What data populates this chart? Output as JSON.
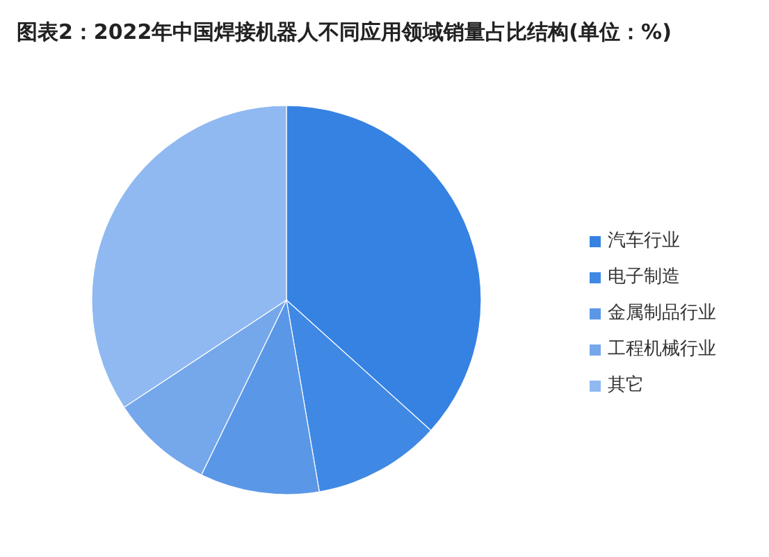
{
  "chart_data": {
    "type": "pie",
    "title": "图表2：2022年中国焊接机器人不同应用领域销量占比结构(单位：%)",
    "categories": [
      "汽车行业",
      "电子制造",
      "金属制品行业",
      "工程机械行业",
      "其它"
    ],
    "values": [
      36.7,
      10.6,
      9.9,
      8.5,
      34.3
    ],
    "colors": [
      "#3682e3",
      "#3f89e4",
      "#5b97e7",
      "#75a7eb",
      "#8fb9f0"
    ],
    "legend": "right"
  }
}
